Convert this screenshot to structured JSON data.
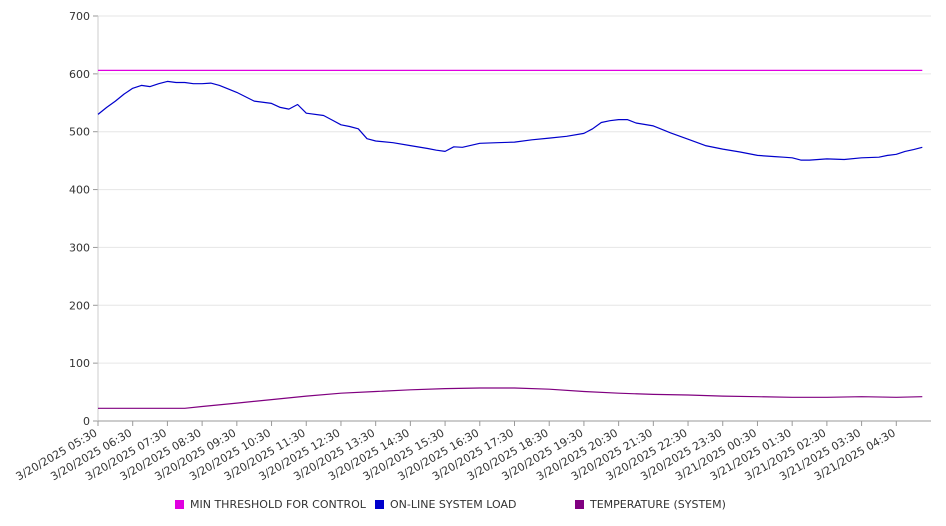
{
  "chart_data": {
    "type": "line",
    "title": "",
    "xlabel": "",
    "ylabel": "",
    "ylim": [
      0,
      700
    ],
    "yticks": [
      0,
      100,
      200,
      300,
      400,
      500,
      600,
      700
    ],
    "grid": true,
    "legend_position": "bottom",
    "x_ticks": [
      "3/20/2025 05:30",
      "3/20/2025 06:30",
      "3/20/2025 07:30",
      "3/20/2025 08:30",
      "3/20/2025 09:30",
      "3/20/2025 10:30",
      "3/20/2025 11:30",
      "3/20/2025 12:30",
      "3/20/2025 13:30",
      "3/20/2025 14:30",
      "3/20/2025 15:30",
      "3/20/2025 16:30",
      "3/20/2025 17:30",
      "3/20/2025 18:30",
      "3/20/2025 19:30",
      "3/20/2025 20:30",
      "3/20/2025 21:30",
      "3/20/2025 22:30",
      "3/20/2025 23:30",
      "3/21/2025 00:30",
      "3/21/2025 01:30",
      "3/21/2025 02:30",
      "3/21/2025 03:30",
      "3/21/2025 04:30"
    ],
    "series": [
      {
        "name": "MIN THRESHOLD FOR CONTROL",
        "color": "#e000e0",
        "x": [
          "3/20/2025 05:30",
          "3/21/2025 05:15"
        ],
        "values": [
          606,
          606
        ]
      },
      {
        "name": "ON-LINE SYSTEM LOAD",
        "color": "#0000cc",
        "x": [
          "3/20/2025 05:30",
          "3/20/2025 05:45",
          "3/20/2025 06:00",
          "3/20/2025 06:15",
          "3/20/2025 06:30",
          "3/20/2025 06:45",
          "3/20/2025 07:00",
          "3/20/2025 07:15",
          "3/20/2025 07:30",
          "3/20/2025 07:45",
          "3/20/2025 08:00",
          "3/20/2025 08:15",
          "3/20/2025 08:30",
          "3/20/2025 08:45",
          "3/20/2025 09:00",
          "3/20/2025 09:15",
          "3/20/2025 09:30",
          "3/20/2025 10:00",
          "3/20/2025 10:30",
          "3/20/2025 10:45",
          "3/20/2025 11:00",
          "3/20/2025 11:15",
          "3/20/2025 11:30",
          "3/20/2025 12:00",
          "3/20/2025 12:15",
          "3/20/2025 12:30",
          "3/20/2025 12:45",
          "3/20/2025 13:00",
          "3/20/2025 13:15",
          "3/20/2025 13:30",
          "3/20/2025 14:00",
          "3/20/2025 14:30",
          "3/20/2025 15:00",
          "3/20/2025 15:15",
          "3/20/2025 15:30",
          "3/20/2025 15:45",
          "3/20/2025 16:00",
          "3/20/2025 16:30",
          "3/20/2025 17:00",
          "3/20/2025 17:30",
          "3/20/2025 18:00",
          "3/20/2025 18:30",
          "3/20/2025 19:00",
          "3/20/2025 19:30",
          "3/20/2025 19:45",
          "3/20/2025 20:00",
          "3/20/2025 20:15",
          "3/20/2025 20:30",
          "3/20/2025 20:45",
          "3/20/2025 21:00",
          "3/20/2025 21:30",
          "3/20/2025 22:00",
          "3/20/2025 22:30",
          "3/20/2025 23:00",
          "3/20/2025 23:30",
          "3/21/2025 00:00",
          "3/21/2025 00:30",
          "3/21/2025 01:00",
          "3/21/2025 01:15",
          "3/21/2025 01:30",
          "3/21/2025 01:45",
          "3/21/2025 02:00",
          "3/21/2025 02:30",
          "3/21/2025 03:00",
          "3/21/2025 03:30",
          "3/21/2025 04:00",
          "3/21/2025 04:15",
          "3/21/2025 04:30",
          "3/21/2025 04:45",
          "3/21/2025 05:00",
          "3/21/2025 05:15"
        ],
        "values": [
          530,
          542,
          553,
          565,
          575,
          580,
          578,
          583,
          587,
          585,
          585,
          583,
          583,
          584,
          580,
          574,
          568,
          553,
          549,
          542,
          539,
          547,
          532,
          528,
          520,
          512,
          509,
          505,
          488,
          484,
          481,
          476,
          471,
          468,
          466,
          474,
          473,
          480,
          481,
          482,
          486,
          489,
          492,
          497,
          505,
          516,
          519,
          521,
          521,
          515,
          510,
          498,
          487,
          476,
          470,
          465,
          459,
          457,
          456,
          455,
          451,
          451,
          453,
          452,
          455,
          456,
          459,
          461,
          466,
          469,
          473
        ]
      },
      {
        "name": "TEMPERATURE (SYSTEM)",
        "color": "#800080",
        "x": [
          "3/20/2025 05:30",
          "3/20/2025 06:30",
          "3/20/2025 07:30",
          "3/20/2025 08:00",
          "3/20/2025 08:30",
          "3/20/2025 09:30",
          "3/20/2025 10:30",
          "3/20/2025 11:30",
          "3/20/2025 12:30",
          "3/20/2025 13:30",
          "3/20/2025 14:30",
          "3/20/2025 15:30",
          "3/20/2025 16:30",
          "3/20/2025 17:30",
          "3/20/2025 18:30",
          "3/20/2025 19:30",
          "3/20/2025 20:30",
          "3/20/2025 21:30",
          "3/20/2025 22:30",
          "3/20/2025 23:30",
          "3/21/2025 00:30",
          "3/21/2025 01:30",
          "3/21/2025 02:30",
          "3/21/2025 03:30",
          "3/21/2025 04:30",
          "3/21/2025 05:15"
        ],
        "values": [
          22,
          22,
          22,
          22,
          25,
          31,
          37,
          43,
          48,
          51,
          54,
          56,
          57,
          57,
          55,
          51,
          48,
          46,
          45,
          43,
          42,
          41,
          41,
          42,
          41,
          42
        ]
      }
    ]
  }
}
